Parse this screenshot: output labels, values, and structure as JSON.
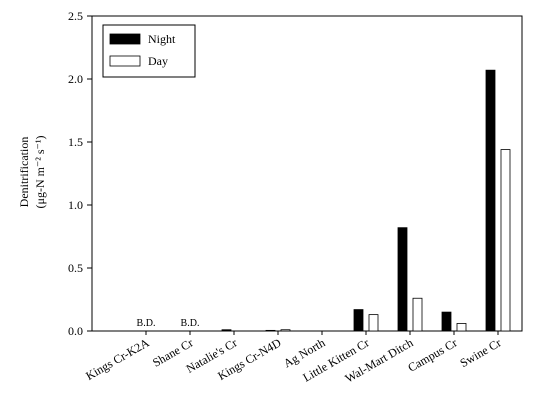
{
  "chart_data": {
    "type": "bar",
    "y_label": "Denitrification",
    "y_label_units": "(μg-N m⁻² s⁻¹)",
    "categories": [
      "Kings Cr-K2A",
      "Shane Cr",
      "Natalie's Cr",
      "Kings Cr-N4D",
      "Ag North",
      "Little Kitten Cr",
      "Wal-Mart Ditch",
      "Campus Cr",
      "Swine Cr"
    ],
    "series": [
      {
        "name": "Night",
        "color": "#000000",
        "values": [
          null,
          null,
          0.01,
          0.005,
          0,
          0.17,
          0.82,
          0.15,
          2.07
        ],
        "value_labels": [
          "B.D.",
          "B.D.",
          null,
          null,
          null,
          null,
          null,
          null,
          null
        ]
      },
      {
        "name": "Day",
        "color": "#ffffff",
        "values": [
          null,
          null,
          0,
          0.01,
          0,
          0.13,
          0.26,
          0.06,
          1.44
        ]
      }
    ],
    "ylim": [
      0,
      2.5
    ],
    "yticks": [
      {
        "value": 0,
        "label": "0.0"
      },
      0.5,
      {
        "value": 1,
        "label": "1.0"
      },
      1.5,
      {
        "value": 2,
        "label": "2.0"
      },
      2.5
    ],
    "grid": false,
    "legend": "upper left"
  }
}
